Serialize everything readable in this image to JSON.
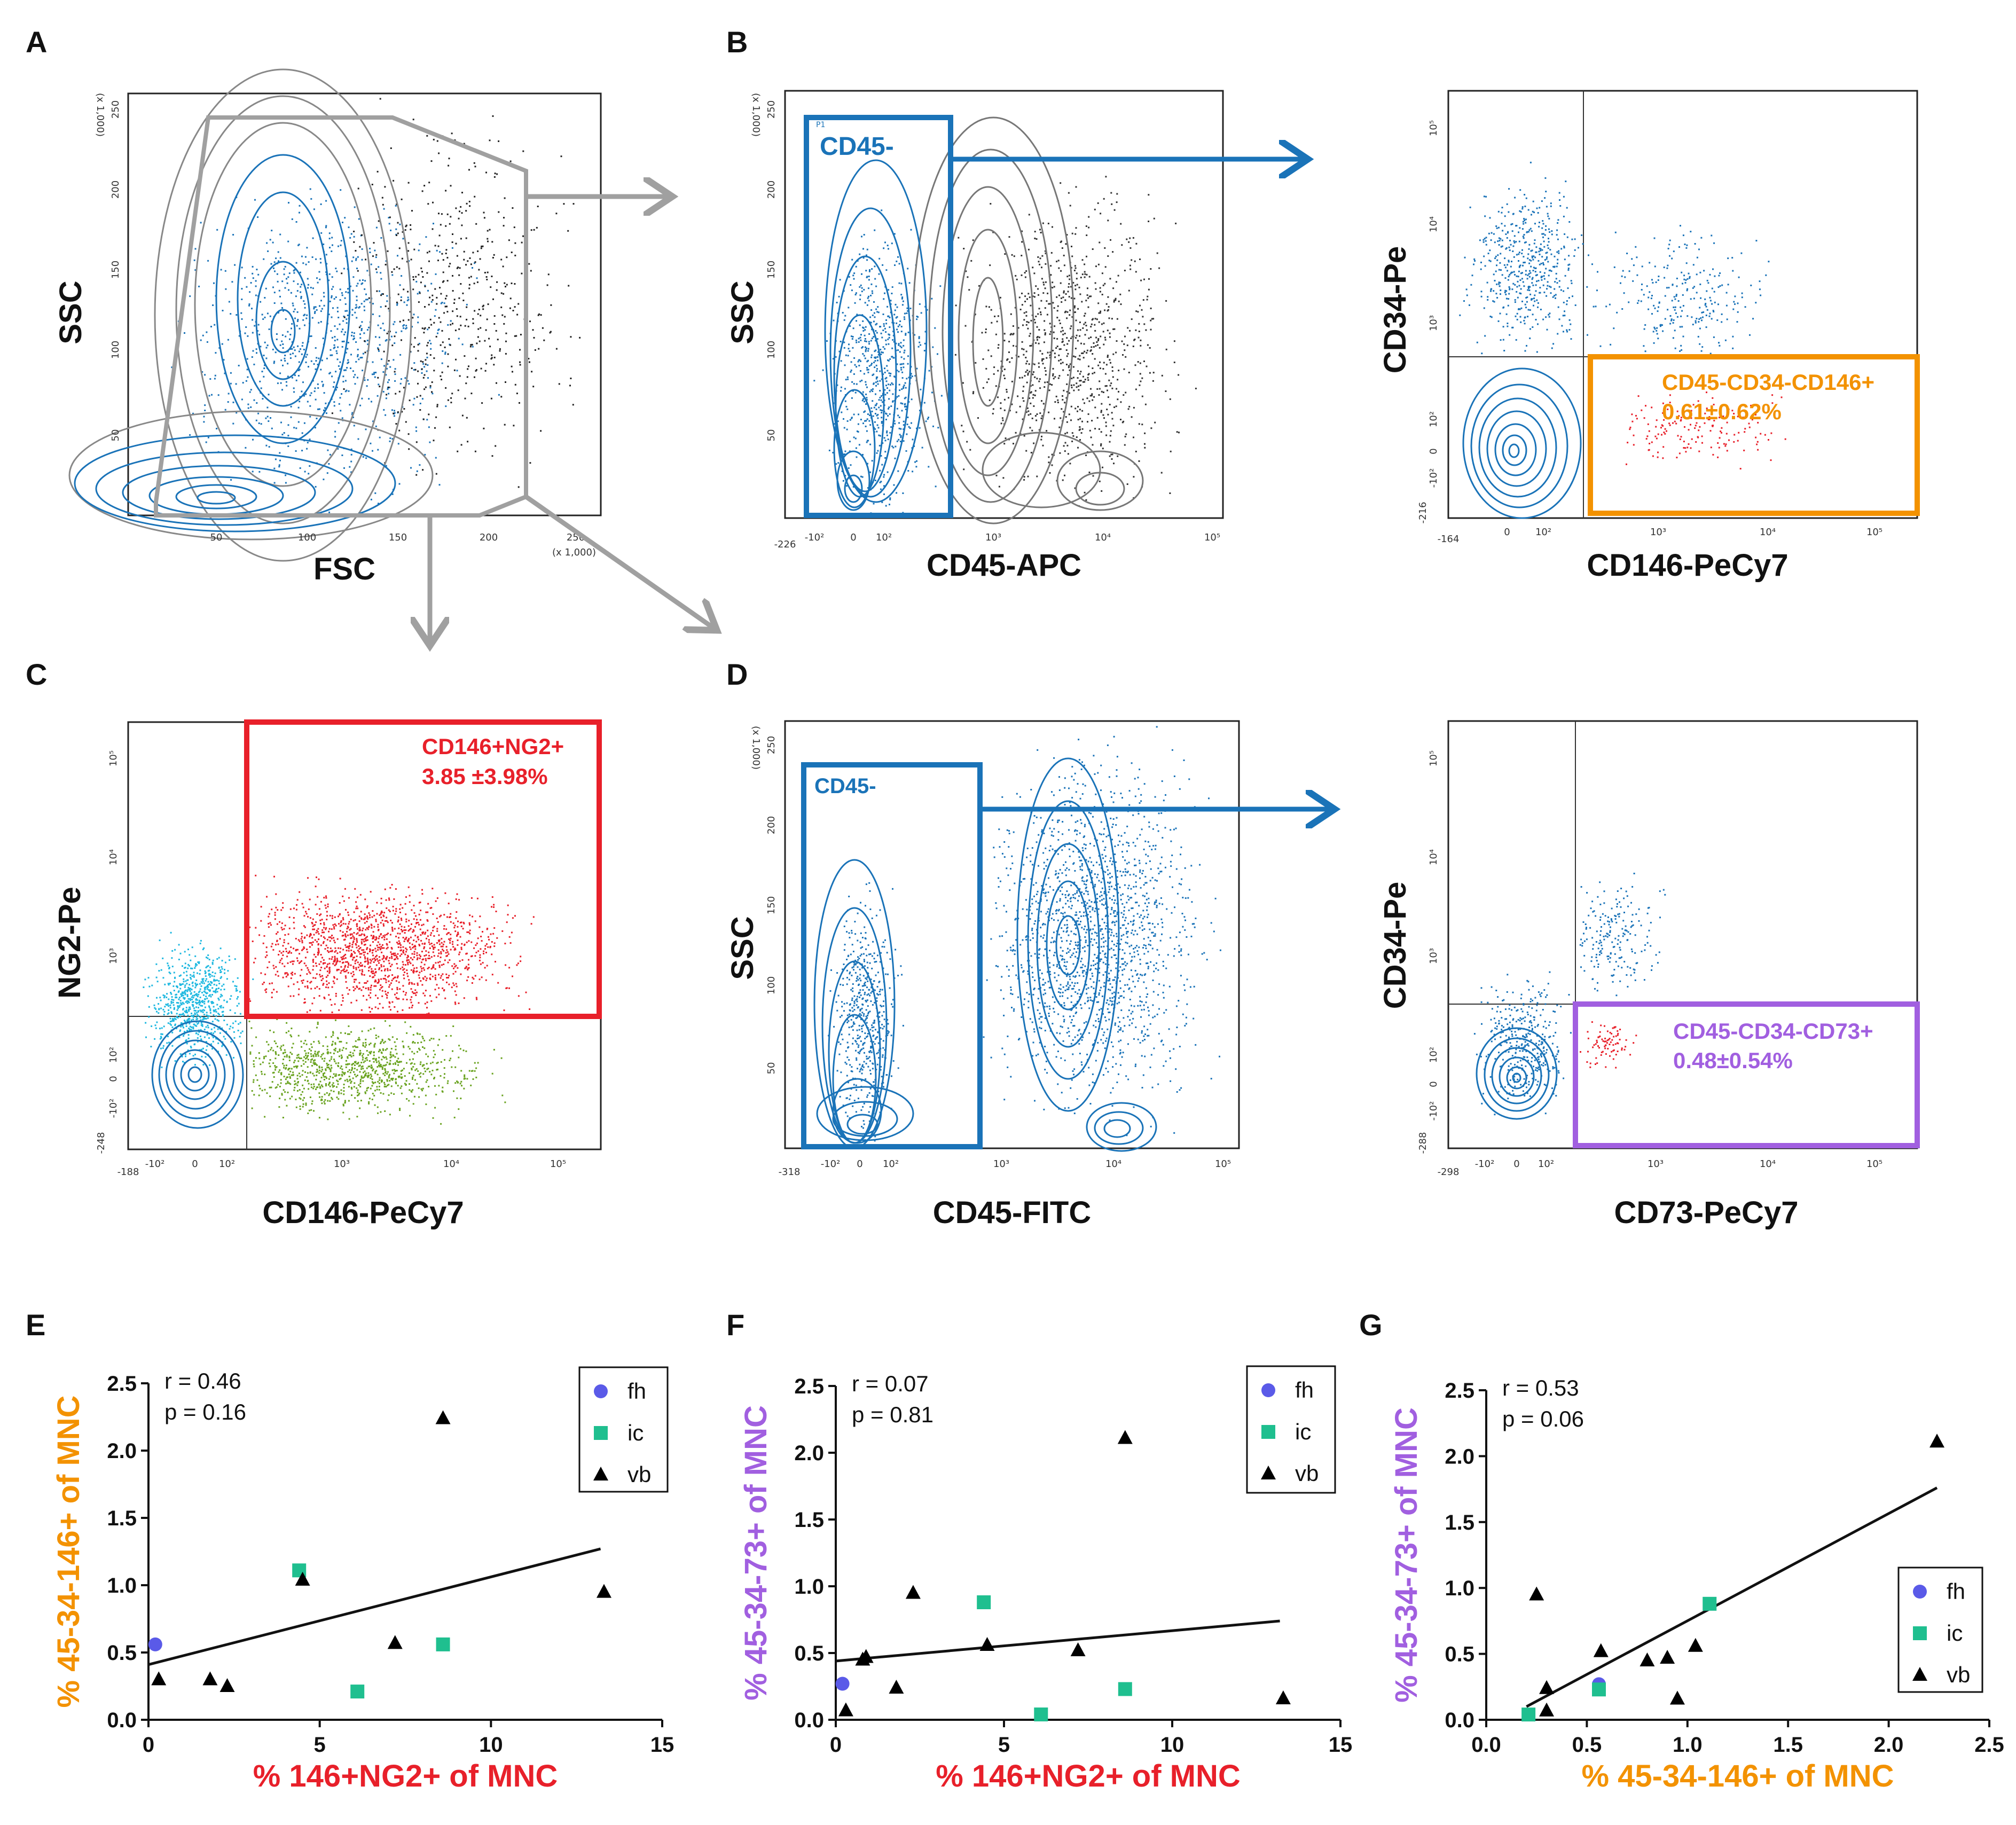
{
  "colors": {
    "blue": "#1a73b8",
    "gray": "#a0a0a0",
    "orange": "#f39200",
    "red": "#e8202a",
    "purple": "#a15fe0",
    "teal": "#1fbf8f",
    "marker_blue": "#5a5ae8"
  },
  "panel_letters": [
    "A",
    "B",
    "C",
    "D",
    "E",
    "F",
    "G"
  ],
  "flow_panels": {
    "A": {
      "xlabel": "FSC",
      "ylabel": "SSC",
      "x_ticks": [
        "50",
        "100",
        "150",
        "200",
        "250"
      ],
      "y_ticks": [
        "50",
        "100",
        "150",
        "200",
        "250"
      ],
      "x_scale_note": "(x 1,000)",
      "y_scale_note": "(x 1,000)"
    },
    "B1": {
      "xlabel": "CD45-APC",
      "ylabel": "SSC",
      "gate_label": "CD45-",
      "gate_tag": "P1",
      "x_ticks": [
        "-10²",
        "0",
        "10²",
        "10³",
        "10⁴",
        "10⁵"
      ],
      "x_min": "-226",
      "y_ticks": [
        "50",
        "100",
        "150",
        "200",
        "250"
      ],
      "y_scale_note": "(x 1,000)"
    },
    "B2": {
      "xlabel": "CD146-PeCy7",
      "ylabel": "CD34-Pe",
      "gate_label": "CD45-CD34-CD146+",
      "gate_value": "0.61±0.62%",
      "x_ticks": [
        "0",
        "10²",
        "10³",
        "10⁴",
        "10⁵"
      ],
      "x_min": "-164",
      "y_ticks": [
        "-10²",
        "0",
        "10²",
        "10³",
        "10⁴",
        "10⁵"
      ],
      "y_min": "-216"
    },
    "C": {
      "xlabel": "CD146-PeCy7",
      "ylabel": "NG2-Pe",
      "gate_label": "CD146+NG2+",
      "gate_value": "3.85 ±3.98%",
      "x_ticks": [
        "-10²",
        "0",
        "10²",
        "10³",
        "10⁴",
        "10⁵"
      ],
      "x_min": "-188",
      "y_ticks": [
        "-10²",
        "0",
        "10²",
        "10³",
        "10⁴",
        "10⁵"
      ],
      "y_min": "-248"
    },
    "D1": {
      "xlabel": "CD45-FITC",
      "ylabel": "SSC",
      "gate_label": "CD45-",
      "x_ticks": [
        "-10²",
        "0",
        "10²",
        "10³",
        "10⁴",
        "10⁵"
      ],
      "x_min": "-318",
      "y_ticks": [
        "50",
        "100",
        "150",
        "200",
        "250"
      ],
      "y_scale_note": "(x 1,000)"
    },
    "D2": {
      "xlabel": "CD73-PeCy7",
      "ylabel": "CD34-Pe",
      "gate_label": "CD45-CD34-CD73+",
      "gate_value": "0.48±0.54%",
      "x_ticks": [
        "-10²",
        "0",
        "10²",
        "10³",
        "10⁴",
        "10⁵"
      ],
      "x_min": "-298",
      "y_ticks": [
        "-10²",
        "0",
        "10²",
        "10³",
        "10⁴",
        "10⁵"
      ],
      "y_min": "-288"
    }
  },
  "chart_data": [
    {
      "panel": "E",
      "type": "scatter",
      "xlabel": "% 146+NG2+ of MNC",
      "ylabel": "% 45-34-146+ of MNC",
      "xlim": [
        0,
        15
      ],
      "ylim": [
        0,
        2.5
      ],
      "x_tick_labels": [
        "0",
        "5",
        "10",
        "15"
      ],
      "y_tick_labels": [
        "0.0",
        "0.5",
        "1.0",
        "1.5",
        "2.0",
        "2.5"
      ],
      "stats": [
        "r = 0.46",
        "p = 0.16"
      ],
      "legend": [
        "fh",
        "ic",
        "vb"
      ],
      "series": [
        {
          "name": "fh",
          "marker": "circle",
          "points": [
            [
              0.2,
              0.56
            ]
          ]
        },
        {
          "name": "ic",
          "marker": "square",
          "points": [
            [
              4.4,
              1.11
            ],
            [
              6.1,
              0.21
            ],
            [
              8.6,
              0.56
            ]
          ]
        },
        {
          "name": "vb",
          "marker": "triangle",
          "points": [
            [
              0.3,
              0.3
            ],
            [
              1.8,
              0.3
            ],
            [
              2.3,
              0.25
            ],
            [
              4.5,
              1.04
            ],
            [
              7.2,
              0.57
            ],
            [
              8.6,
              2.24
            ],
            [
              13.3,
              0.95
            ]
          ]
        }
      ],
      "fit_line": [
        [
          0,
          0.41
        ],
        [
          13.2,
          1.27
        ]
      ]
    },
    {
      "panel": "F",
      "type": "scatter",
      "xlabel": "% 146+NG2+ of MNC",
      "ylabel": "% 45-34-73+ of MNC",
      "xlim": [
        0,
        15
      ],
      "ylim": [
        0,
        2.5
      ],
      "x_tick_labels": [
        "0",
        "5",
        "10",
        "15"
      ],
      "y_tick_labels": [
        "0.0",
        "0.5",
        "1.0",
        "1.5",
        "2.0",
        "2.5"
      ],
      "stats": [
        "r = 0.07",
        "p = 0.81"
      ],
      "legend": [
        "fh",
        "ic",
        "vb"
      ],
      "series": [
        {
          "name": "fh",
          "marker": "circle",
          "points": [
            [
              0.2,
              0.27
            ]
          ]
        },
        {
          "name": "ic",
          "marker": "square",
          "points": [
            [
              4.4,
              0.88
            ],
            [
              6.1,
              0.04
            ],
            [
              8.6,
              0.23
            ]
          ]
        },
        {
          "name": "vb",
          "marker": "triangle",
          "points": [
            [
              0.3,
              0.07
            ],
            [
              0.8,
              0.45
            ],
            [
              0.9,
              0.47
            ],
            [
              1.8,
              0.24
            ],
            [
              2.3,
              0.95
            ],
            [
              4.5,
              0.56
            ],
            [
              7.2,
              0.52
            ],
            [
              8.6,
              2.11
            ],
            [
              13.3,
              0.16
            ]
          ]
        }
      ],
      "fit_line": [
        [
          0,
          0.44
        ],
        [
          13.2,
          0.74
        ]
      ]
    },
    {
      "panel": "G",
      "type": "scatter",
      "xlabel": "% 45-34-146+ of MNC",
      "ylabel": "% 45-34-73+ of MNC",
      "xlim": [
        0,
        2.5
      ],
      "ylim": [
        0,
        2.5
      ],
      "x_tick_labels": [
        "0.0",
        "0.5",
        "1.0",
        "1.5",
        "2.0",
        "2.5"
      ],
      "y_tick_labels": [
        "0.0",
        "0.5",
        "1.0",
        "1.5",
        "2.0",
        "2.5"
      ],
      "stats": [
        "r = 0.53",
        "p = 0.06"
      ],
      "legend": [
        "fh",
        "ic",
        "vb"
      ],
      "series": [
        {
          "name": "fh",
          "marker": "circle",
          "points": [
            [
              0.56,
              0.27
            ]
          ]
        },
        {
          "name": "ic",
          "marker": "square",
          "points": [
            [
              0.21,
              0.04
            ],
            [
              0.56,
              0.23
            ],
            [
              1.11,
              0.88
            ]
          ]
        },
        {
          "name": "vb",
          "marker": "triangle",
          "points": [
            [
              0.25,
              0.95
            ],
            [
              0.3,
              0.24
            ],
            [
              0.3,
              0.07
            ],
            [
              0.57,
              0.52
            ],
            [
              0.8,
              0.45
            ],
            [
              0.9,
              0.47
            ],
            [
              0.95,
              0.16
            ],
            [
              1.04,
              0.56
            ],
            [
              2.24,
              2.11
            ]
          ]
        }
      ],
      "fit_line": [
        [
          0.2,
          0.1
        ],
        [
          2.24,
          1.76
        ]
      ]
    }
  ]
}
